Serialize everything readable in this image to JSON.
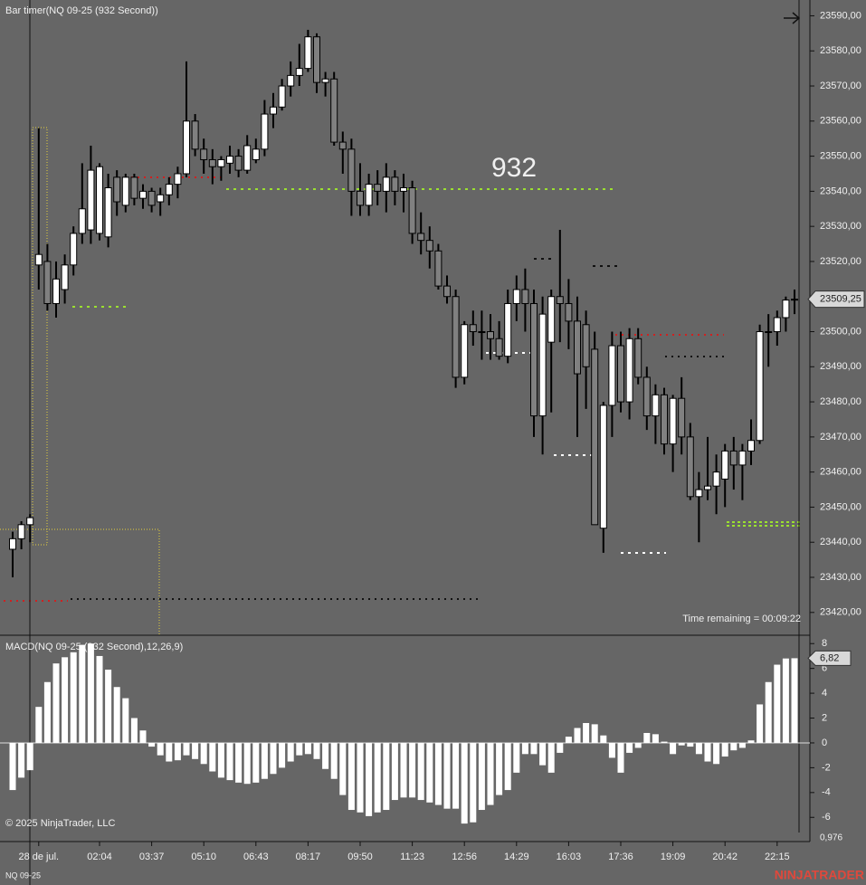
{
  "chart_data": [
    {
      "type": "candlestick",
      "title": "Bar timer(NQ 09-25 (932 Second))",
      "annotation": "932",
      "timer_text": "Time remaining = 00:09:22",
      "last_label": "23509,25",
      "categories": [
        null,
        null,
        null,
        "28 de jul.",
        null,
        null,
        null,
        null,
        null,
        null,
        "02:04",
        null,
        null,
        null,
        null,
        null,
        "03:37",
        null,
        null,
        null,
        null,
        null,
        "05:10",
        null,
        null,
        null,
        null,
        null,
        "06:43",
        null,
        null,
        null,
        null,
        null,
        "08:17",
        null,
        null,
        null,
        null,
        null,
        "09:50",
        null,
        null,
        null,
        null,
        null,
        "11:23",
        null,
        null,
        null,
        null,
        null,
        "12:56",
        null,
        null,
        null,
        null,
        null,
        "14:29",
        null,
        null,
        null,
        null,
        null,
        "16:03",
        null,
        null,
        null,
        null,
        null,
        "17:36",
        null,
        null,
        null,
        null,
        null,
        "19:09",
        null,
        null,
        null,
        null,
        null,
        "20:42",
        null,
        null,
        null,
        null,
        null,
        "22:15",
        null,
        null
      ],
      "open": [
        23438,
        23441,
        23445,
        23519,
        23520,
        23508,
        23512,
        23519,
        23528,
        23529,
        23528,
        23527,
        23544,
        23536,
        23544,
        23538,
        23540,
        23537,
        23539,
        23542,
        23545,
        23560,
        23552,
        23549,
        23547,
        23548,
        23550,
        23546,
        23549,
        23552,
        23562,
        23564,
        23570,
        23573,
        23575,
        23584,
        23571,
        23572,
        23554,
        23552,
        23540,
        23536,
        23542,
        23540,
        23544,
        23540,
        23541,
        23528,
        23526,
        23523,
        23513,
        23510,
        23487,
        23502,
        23500,
        23500,
        23498,
        23493,
        23508,
        23512,
        23508,
        23476,
        23497,
        23510,
        23508,
        23503,
        23502,
        23495,
        23444,
        23479,
        23496,
        23480,
        23498,
        23487,
        23476,
        23482,
        23468,
        23481,
        23470,
        23453,
        23455,
        23456,
        23458,
        23466,
        23462,
        23466,
        23469,
        23500,
        23500,
        23504,
        23509
      ],
      "high": [
        23443,
        23446,
        23448,
        23558,
        23525,
        23520,
        23522,
        23530,
        23548,
        23553,
        23548,
        23545,
        23546,
        23545,
        23545,
        23542,
        23541,
        23541,
        23544,
        23547,
        23577,
        23562,
        23555,
        23552,
        23550,
        23553,
        23552,
        23556,
        23555,
        23566,
        23568,
        23572,
        23577,
        23582,
        23586,
        23585,
        23574,
        23574,
        23557,
        23555,
        23548,
        23545,
        23546,
        23548,
        23546,
        23545,
        23543,
        23534,
        23530,
        23525,
        23516,
        23512,
        23503,
        23506,
        23506,
        23505,
        23503,
        23512,
        23516,
        23518,
        23512,
        23510,
        23512,
        23529,
        23515,
        23510,
        23506,
        23500,
        23480,
        23500,
        23500,
        23501,
        23501,
        23490,
        23485,
        23484,
        23482,
        23487,
        23474,
        23460,
        23470,
        23465,
        23468,
        23470,
        23468,
        23475,
        23502,
        23505,
        23506,
        23510,
        23512
      ],
      "low": [
        23430,
        23438,
        23440,
        23512,
        23506,
        23504,
        23508,
        23516,
        23525,
        23525,
        23526,
        23524,
        23533,
        23534,
        23536,
        23535,
        23534,
        23533,
        23536,
        23538,
        23544,
        23550,
        23545,
        23542,
        23543,
        23545,
        23544,
        23545,
        23548,
        23550,
        23558,
        23563,
        23567,
        23570,
        23574,
        23568,
        23567,
        23553,
        23545,
        23533,
        23533,
        23533,
        23536,
        23534,
        23536,
        23534,
        23525,
        23522,
        23518,
        23512,
        23508,
        23484,
        23485,
        23496,
        23492,
        23492,
        23492,
        23491,
        23503,
        23500,
        23470,
        23465,
        23477,
        23497,
        23495,
        23470,
        23478,
        23446,
        23437,
        23470,
        23477,
        23475,
        23485,
        23472,
        23468,
        23465,
        23460,
        23465,
        23452,
        23440,
        23452,
        23448,
        23450,
        23455,
        23452,
        23462,
        23468,
        23490,
        23496,
        23500,
        23505
      ],
      "close": [
        23441,
        23445,
        23447,
        23522,
        23508,
        23515,
        23519,
        23528,
        23535,
        23546,
        23547,
        23541,
        23537,
        23544,
        23538,
        23540,
        23536,
        23539,
        23542,
        23545,
        23560,
        23552,
        23549,
        23547,
        23549,
        23550,
        23546,
        23553,
        23552,
        23562,
        23564,
        23570,
        23573,
        23575,
        23584,
        23571,
        23572,
        23554,
        23552,
        23540,
        23536,
        23542,
        23540,
        23544,
        23540,
        23541,
        23528,
        23526,
        23523,
        23513,
        23510,
        23487,
        23502,
        23500,
        23500,
        23498,
        23493,
        23508,
        23512,
        23508,
        23476,
        23505,
        23510,
        23508,
        23503,
        23488,
        23490,
        23445,
        23479,
        23496,
        23480,
        23498,
        23487,
        23476,
        23482,
        23468,
        23481,
        23470,
        23453,
        23455,
        23456,
        23460,
        23466,
        23462,
        23466,
        23469,
        23500,
        23500,
        23504,
        23509,
        23509.25
      ],
      "up_color": "#ffffff",
      "down_color": "#808080",
      "ylim": [
        23413.5,
        23594.5
      ],
      "yticks": [
        {
          "value": 23420,
          "label": "23420,00"
        },
        {
          "value": 23430,
          "label": "23430,00"
        },
        {
          "value": 23440,
          "label": "23440,00"
        },
        {
          "value": 23450,
          "label": "23450,00"
        },
        {
          "value": 23460,
          "label": "23460,00"
        },
        {
          "value": 23470,
          "label": "23470,00"
        },
        {
          "value": 23480,
          "label": "23480,00"
        },
        {
          "value": 23490,
          "label": "23490,00"
        },
        {
          "value": 23500,
          "label": "23500,00"
        },
        {
          "value": 23510,
          "label": "23510,00"
        },
        {
          "value": 23520,
          "label": "23520,00"
        },
        {
          "value": 23530,
          "label": "23530,00"
        },
        {
          "value": 23540,
          "label": "23540,00"
        },
        {
          "value": 23550,
          "label": "23550,00"
        },
        {
          "value": 23560,
          "label": "23560,00"
        },
        {
          "value": 23570,
          "label": "23570,00"
        },
        {
          "value": 23580,
          "label": "23580,00"
        },
        {
          "value": 23590,
          "label": "23590,00"
        }
      ]
    },
    {
      "type": "bar",
      "title": "MACD(NQ 09-25 (932 Second),12,26,9)",
      "last_label": "6,82",
      "low_label": "0,976",
      "values": [
        -3.8,
        -2.8,
        -2.2,
        2.9,
        4.9,
        6.4,
        6.9,
        7.3,
        7.9,
        8.0,
        7.0,
        5.9,
        4.5,
        3.6,
        2.0,
        1.0,
        -0.3,
        -1.0,
        -1.5,
        -1.4,
        -1.0,
        -1.3,
        -1.7,
        -2.3,
        -2.8,
        -3.0,
        -3.2,
        -3.3,
        -3.2,
        -2.9,
        -2.5,
        -2.0,
        -1.5,
        -1.0,
        -0.9,
        -1.3,
        -2.1,
        -2.9,
        -4.2,
        -5.4,
        -5.6,
        -5.9,
        -5.6,
        -5.4,
        -4.6,
        -4.4,
        -4.4,
        -4.6,
        -4.8,
        -5.0,
        -5.3,
        -5.3,
        -6.5,
        -6.4,
        -5.4,
        -5.0,
        -4.2,
        -3.8,
        -2.4,
        -0.9,
        -0.9,
        -1.8,
        -2.4,
        -0.8,
        0.5,
        1.2,
        1.6,
        1.5,
        0.6,
        -1.2,
        -2.4,
        -0.8,
        -0.4,
        0.8,
        0.7,
        0.1,
        -0.9,
        -0.2,
        -0.3,
        -0.9,
        -1.5,
        -1.7,
        -1.1,
        -0.6,
        -0.4,
        0.2,
        3.1,
        4.9,
        6.3,
        6.8,
        6.82
      ],
      "color": "#ffffff",
      "ylim": [
        -7.95,
        8.6
      ],
      "yticks": [
        -6,
        -4,
        -2,
        0,
        2,
        4,
        6,
        8
      ]
    }
  ],
  "footer": {
    "copyright": "© 2025 NinjaTrader, LLC",
    "instrument": "NQ 09-25",
    "brand": "NINJATRADER"
  }
}
